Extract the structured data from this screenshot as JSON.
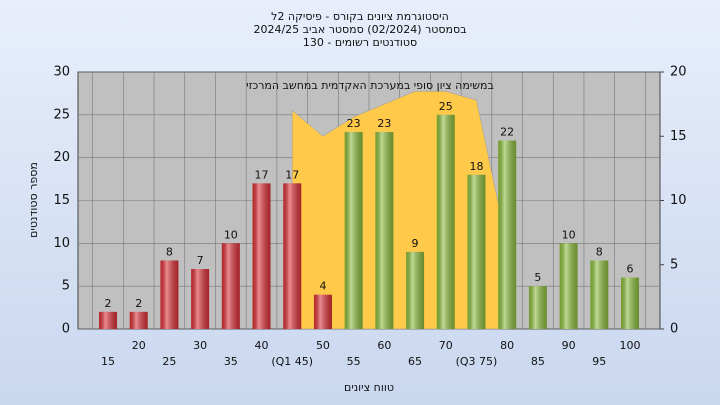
{
  "chart_data": {
    "type": "bar",
    "title": "היסטוגרמת ציונים בקורס - פיסיקה 2ל",
    "subtitle": "בסמסטר  (02/2024)  סמסטר אביב 2024/25",
    "subtitle2": "סטודנטים רשומים - 130",
    "annotation": "במשימה  ציון סופי במערכת האקדמית במחשב המרכזי",
    "x_label": "טווח ציונים",
    "y_label": "מספר סטודנטים",
    "categories": [
      "15",
      "20",
      "25",
      "30",
      "35",
      "40",
      "(Q1 45)",
      "50",
      "55",
      "60",
      "65",
      "70",
      "(Q3 75)",
      "80",
      "85",
      "90",
      "95",
      "100"
    ],
    "series": [
      {
        "color": "#dc2f36",
        "values": [
          2,
          2,
          8,
          7,
          10,
          17,
          17,
          4,
          null,
          null,
          null,
          null,
          null,
          null,
          null,
          null,
          null,
          null
        ]
      },
      {
        "color": "#8cbd3c",
        "values": [
          null,
          null,
          null,
          null,
          null,
          null,
          null,
          null,
          23,
          23,
          9,
          25,
          18,
          22,
          5,
          10,
          8,
          6
        ]
      },
      {
        "type": "area",
        "axis": "y2",
        "color": "#ffc94a",
        "values": [
          null,
          null,
          null,
          null,
          null,
          null,
          17,
          15,
          16.5,
          17.5,
          18.5,
          18.5,
          17.8,
          6.5,
          null,
          null,
          null,
          null
        ]
      }
    ],
    "ylim": [
      0,
      30
    ],
    "yticks": [
      0,
      5,
      10,
      15,
      20,
      25,
      30
    ],
    "y2lim": [
      0,
      20
    ],
    "y2ticks": [
      0,
      5,
      10,
      15,
      20
    ],
    "grid": true
  }
}
